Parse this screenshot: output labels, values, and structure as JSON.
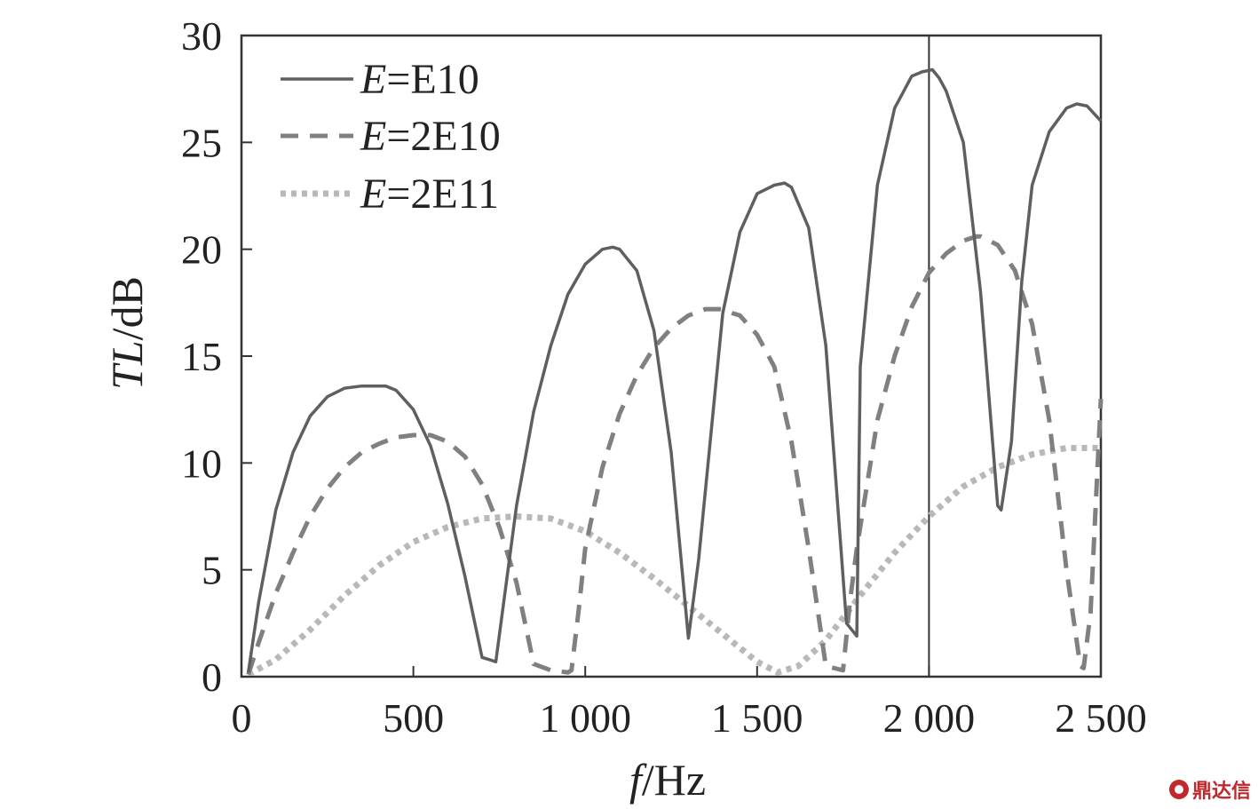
{
  "chart_data": {
    "type": "line",
    "title": "",
    "xlabel": {
      "italic": "f",
      "rest": "/Hz"
    },
    "ylabel": {
      "italic": "TL",
      "rest": "/dB"
    },
    "xlim": [
      0,
      2500
    ],
    "ylim": [
      0,
      30
    ],
    "x_ticks": [
      0,
      500,
      1000,
      1500,
      2000,
      2500
    ],
    "x_tick_labels": [
      "0",
      "500",
      "1 000",
      "1 500",
      "2 000",
      "2 500"
    ],
    "y_ticks": [
      0,
      5,
      10,
      15,
      20,
      25,
      30
    ],
    "y_tick_labels": [
      "0",
      "5",
      "10",
      "15",
      "20",
      "25",
      "30"
    ],
    "vertical_line_x": 2000,
    "grid": false,
    "legend_position": "top-left",
    "series": [
      {
        "name": "E10",
        "legend_italic": "E",
        "legend_rest": "=E10",
        "style": "solid",
        "color": "#5f5f5f",
        "x": [
          20,
          50,
          100,
          150,
          200,
          250,
          300,
          350,
          400,
          420,
          450,
          500,
          550,
          600,
          650,
          700,
          720,
          740,
          800,
          850,
          900,
          950,
          1000,
          1050,
          1080,
          1100,
          1150,
          1200,
          1250,
          1300,
          1310,
          1330,
          1400,
          1450,
          1500,
          1550,
          1580,
          1600,
          1650,
          1700,
          1760,
          1790,
          1800,
          1850,
          1900,
          1950,
          1980,
          2010,
          2030,
          2050,
          2100,
          2150,
          2200,
          2210,
          2240,
          2270,
          2300,
          2350,
          2400,
          2430,
          2460,
          2500
        ],
        "y": [
          0.2,
          3.5,
          7.8,
          10.5,
          12.2,
          13.1,
          13.5,
          13.6,
          13.6,
          13.6,
          13.4,
          12.5,
          10.8,
          8.1,
          4.7,
          0.9,
          0.8,
          0.7,
          8.0,
          12.4,
          15.5,
          17.9,
          19.3,
          20.0,
          20.1,
          20.0,
          19.0,
          16.2,
          10.5,
          1.8,
          3.0,
          5.5,
          17.0,
          20.8,
          22.6,
          23.0,
          23.1,
          22.9,
          21.0,
          15.5,
          2.5,
          1.9,
          14.5,
          23.0,
          26.6,
          28.1,
          28.3,
          28.4,
          28.0,
          27.4,
          25.0,
          18.0,
          8.0,
          7.8,
          11.0,
          18.5,
          23.0,
          25.5,
          26.6,
          26.8,
          26.7,
          26.0
        ]
      },
      {
        "name": "2E10",
        "legend_italic": "E",
        "legend_rest": "=2E10",
        "style": "dashed",
        "color": "#808080",
        "x": [
          20,
          50,
          100,
          150,
          200,
          250,
          300,
          350,
          400,
          450,
          500,
          550,
          600,
          650,
          700,
          750,
          800,
          850,
          900,
          950,
          960,
          980,
          1000,
          1050,
          1100,
          1150,
          1200,
          1250,
          1300,
          1350,
          1400,
          1430,
          1450,
          1500,
          1550,
          1600,
          1650,
          1700,
          1750,
          1770,
          1790,
          1820,
          1850,
          1900,
          1950,
          2000,
          2050,
          2100,
          2140,
          2150,
          2200,
          2250,
          2300,
          2350,
          2400,
          2440,
          2450,
          2470,
          2500
        ],
        "y": [
          0.1,
          1.6,
          3.9,
          5.8,
          7.5,
          8.8,
          9.8,
          10.5,
          10.9,
          11.2,
          11.3,
          11.3,
          11.0,
          10.3,
          9.0,
          7.0,
          4.4,
          0.6,
          0.3,
          0.2,
          0.3,
          3.0,
          6.0,
          9.8,
          12.3,
          14.1,
          15.4,
          16.3,
          16.9,
          17.2,
          17.2,
          17.0,
          16.9,
          16.0,
          14.5,
          11.0,
          6.0,
          0.5,
          0.3,
          3.5,
          6.0,
          9.0,
          12.0,
          15.0,
          17.3,
          18.9,
          19.8,
          20.4,
          20.6,
          20.6,
          20.2,
          19.0,
          16.5,
          12.0,
          5.0,
          0.5,
          0.4,
          3.0,
          13.0
        ]
      },
      {
        "name": "2E11",
        "legend_italic": "E",
        "legend_rest": "=2E11",
        "style": "dotted",
        "color": "#b8b8b8",
        "x": [
          20,
          100,
          200,
          300,
          400,
          500,
          600,
          700,
          800,
          900,
          1000,
          1100,
          1200,
          1300,
          1400,
          1500,
          1560,
          1620,
          1700,
          1800,
          1900,
          2000,
          2100,
          2200,
          2300,
          2400,
          2500
        ],
        "y": [
          0.1,
          0.8,
          2.2,
          3.8,
          5.2,
          6.3,
          7.0,
          7.4,
          7.5,
          7.4,
          6.8,
          5.8,
          4.6,
          3.3,
          2.0,
          0.7,
          0.2,
          0.5,
          1.7,
          3.8,
          5.8,
          7.5,
          8.9,
          9.8,
          10.4,
          10.7,
          10.7
        ]
      }
    ]
  },
  "watermark": {
    "text": "鼎达信",
    "color": "#c0282d"
  }
}
